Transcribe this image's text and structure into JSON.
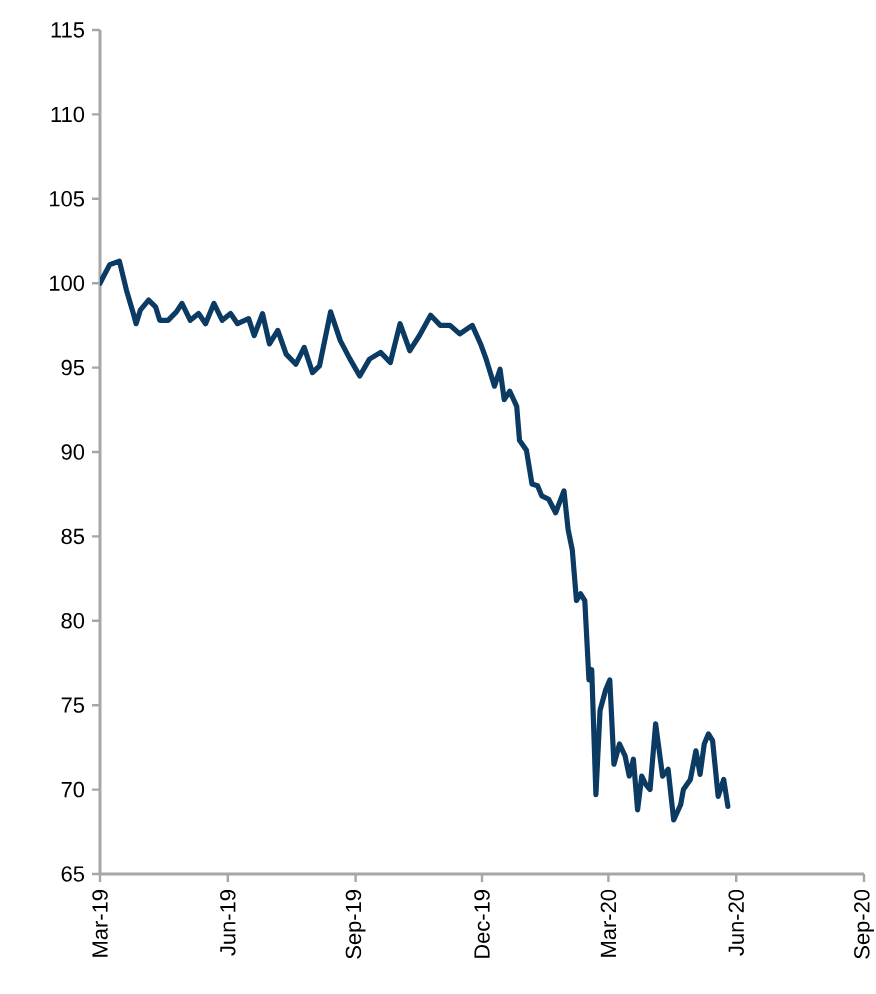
{
  "chart_data": {
    "type": "line",
    "x": [
      "2019-03-01",
      "2019-03-08",
      "2019-03-15",
      "2019-03-20",
      "2019-03-25",
      "2019-03-27",
      "2019-03-30",
      "2019-04-05",
      "2019-04-10",
      "2019-04-13",
      "2019-04-19",
      "2019-04-25",
      "2019-04-29",
      "2019-05-05",
      "2019-05-11",
      "2019-05-16",
      "2019-05-22",
      "2019-05-28",
      "2019-06-03",
      "2019-06-08",
      "2019-06-16",
      "2019-06-20",
      "2019-06-26",
      "2019-07-01",
      "2019-07-07",
      "2019-07-13",
      "2019-07-20",
      "2019-07-26",
      "2019-08-01",
      "2019-08-06",
      "2019-08-14",
      "2019-08-21",
      "2019-08-28",
      "2019-09-04",
      "2019-09-11",
      "2019-09-19",
      "2019-09-26",
      "2019-10-03",
      "2019-10-10",
      "2019-10-17",
      "2019-10-25",
      "2019-11-01",
      "2019-11-08",
      "2019-11-15",
      "2019-11-24",
      "2019-11-30",
      "2019-12-04",
      "2019-12-10",
      "2019-12-14",
      "2019-12-17",
      "2019-12-21",
      "2019-12-26",
      "2019-12-28",
      "2020-01-02",
      "2020-01-06",
      "2020-01-10",
      "2020-01-13",
      "2020-01-18",
      "2020-01-23",
      "2020-01-29",
      "2020-02-01",
      "2020-02-04",
      "2020-02-07",
      "2020-02-10",
      "2020-02-13",
      "2020-02-16",
      "2020-02-18",
      "2020-02-21",
      "2020-02-24",
      "2020-02-28",
      "2020-03-02",
      "2020-03-05",
      "2020-03-09",
      "2020-03-13",
      "2020-03-16",
      "2020-03-19",
      "2020-03-22",
      "2020-03-25",
      "2020-03-28",
      "2020-03-31",
      "2020-04-04",
      "2020-04-09",
      "2020-04-13",
      "2020-04-17",
      "2020-04-22",
      "2020-04-24",
      "2020-04-29",
      "2020-05-03",
      "2020-05-06",
      "2020-05-09",
      "2020-05-12",
      "2020-05-15",
      "2020-05-19",
      "2020-05-23",
      "2020-05-26"
    ],
    "series": [
      {
        "color": "#0b3a63",
        "values": [
          100.0,
          101.1,
          101.3,
          99.6,
          98.2,
          97.6,
          98.4,
          99.0,
          98.6,
          97.8,
          97.8,
          98.3,
          98.8,
          97.8,
          98.2,
          97.6,
          98.8,
          97.8,
          98.2,
          97.6,
          97.9,
          96.9,
          98.2,
          96.4,
          97.2,
          95.8,
          95.2,
          96.2,
          94.7,
          95.1,
          98.3,
          96.6,
          95.5,
          94.5,
          95.5,
          95.9,
          95.3,
          97.6,
          96.0,
          96.9,
          98.1,
          97.5,
          97.5,
          97.0,
          97.5,
          96.4,
          95.5,
          93.9,
          94.9,
          93.1,
          93.6,
          92.7,
          90.7,
          90.1,
          88.1,
          88.0,
          87.4,
          87.2,
          86.4,
          87.7,
          85.4,
          84.2,
          81.2,
          81.6,
          81.2,
          76.5,
          77.1,
          69.7,
          74.7,
          75.9,
          76.5,
          71.5,
          72.7,
          72.0,
          70.8,
          71.8,
          68.8,
          70.8,
          70.3,
          70.0,
          73.9,
          70.8,
          71.2,
          68.2,
          69.1,
          70.0,
          70.6,
          72.3,
          70.9,
          72.7,
          73.3,
          72.9,
          69.6,
          70.6,
          69.0
        ]
      }
    ],
    "xlim": [
      "2019-03-01",
      "2020-09-01"
    ],
    "xticks": [
      {
        "value": "2019-03-01",
        "label": "Mar-19"
      },
      {
        "value": "2019-06-01",
        "label": "Jun-19"
      },
      {
        "value": "2019-09-01",
        "label": "Sep-19"
      },
      {
        "value": "2019-12-01",
        "label": "Dec-19"
      },
      {
        "value": "2020-03-01",
        "label": "Mar-20"
      },
      {
        "value": "2020-06-01",
        "label": "Jun-20"
      },
      {
        "value": "2020-09-01",
        "label": "Sep-20"
      }
    ],
    "ylim": [
      65,
      115
    ],
    "yticks": [
      65,
      70,
      75,
      80,
      85,
      90,
      95,
      100,
      105,
      110,
      115
    ],
    "grid": false,
    "legend": false,
    "marker": "none",
    "line_style": "solid"
  }
}
